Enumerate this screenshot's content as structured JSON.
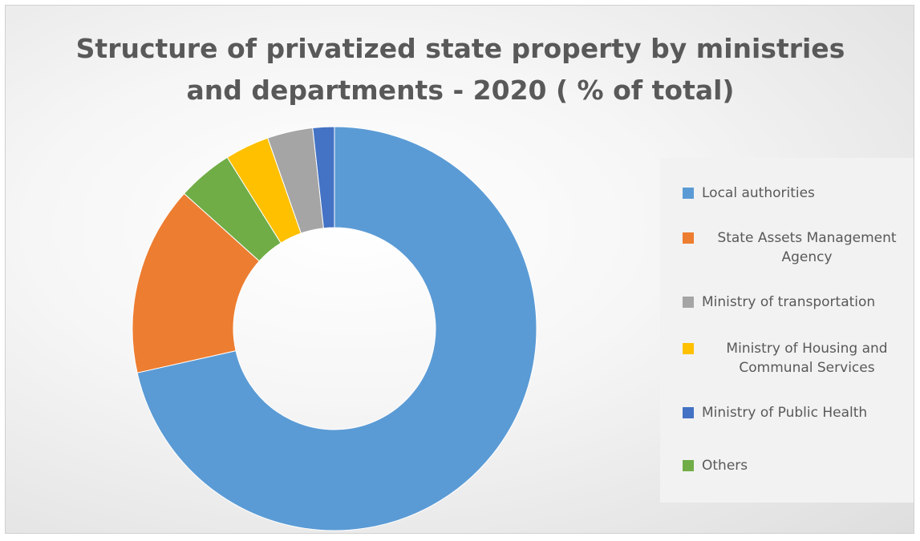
{
  "chart_data": {
    "type": "donut",
    "title": "Structure of privatized state property by ministries and departments - 2020 ( % of total)",
    "unit": "% of total",
    "categories": [
      "Local authorities",
      "State Assets Management Agency",
      "Ministry of transportation",
      "Ministry of Housing and Communal Services",
      "Ministry of Public Health",
      "Others"
    ],
    "values": [
      70.7,
      15.0,
      3.6,
      3.5,
      1.7,
      4.4
    ],
    "colors": [
      "#5b9bd5",
      "#ed7d31",
      "#a5a5a5",
      "#ffc000",
      "#4472c4",
      "#70ad47"
    ],
    "draw_order": [
      "Local authorities",
      "State Assets Management Agency",
      "Others",
      "Ministry of Housing and Communal Services",
      "Ministry of transportation",
      "Ministry of Public Health"
    ],
    "legend_position": "right",
    "legend": [
      {
        "label": "Local authorities",
        "color": "#5b9bd5"
      },
      {
        "label": "State Assets Management Agency",
        "color": "#ed7d31"
      },
      {
        "label": "Ministry of transportation",
        "color": "#a5a5a5"
      },
      {
        "label": "Ministry of Housing and Communal Services",
        "color": "#ffc000"
      },
      {
        "label": "Ministry of Public Health",
        "color": "#4472c4"
      },
      {
        "label": "Others",
        "color": "#70ad47"
      }
    ]
  }
}
